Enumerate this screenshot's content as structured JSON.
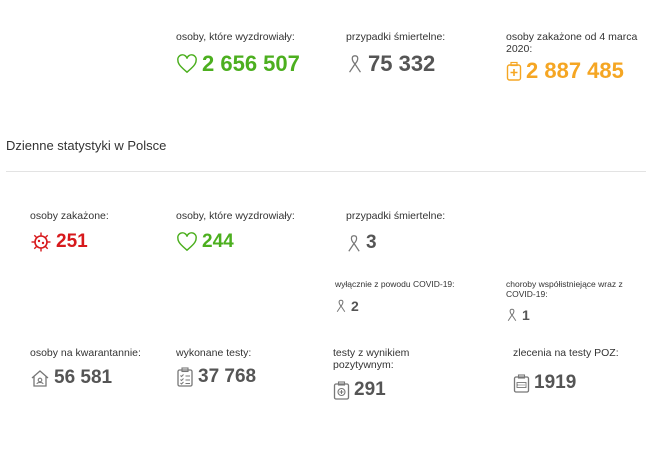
{
  "top": {
    "recovered": {
      "label": "osoby, które wyzdrowiały:",
      "value": "2 656 507"
    },
    "deaths": {
      "label": "przypadki śmiertelne:",
      "value": "75 332"
    },
    "infected_since": {
      "label": "osoby zakażone od 4 marca 2020:",
      "value": "2 887 485"
    }
  },
  "section": {
    "title": "Dzienne statystyki w Polsce"
  },
  "daily": {
    "infected": {
      "label": "osoby zakażone:",
      "value": "251"
    },
    "recovered": {
      "label": "osoby, które wyzdrowiały:",
      "value": "244"
    },
    "deaths": {
      "label": "przypadki śmiertelne:",
      "value": "3"
    },
    "covid_only": {
      "label": "wyłącznie z powodu COVID-19:",
      "value": "2"
    },
    "comorbid": {
      "label": "choroby współistniejące wraz z COVID-19:",
      "value": "1"
    },
    "quarantine": {
      "label": "osoby na kwarantannie:",
      "value": "56 581"
    },
    "tests": {
      "label": "wykonane testy:",
      "value": "37 768"
    },
    "positive_tests": {
      "label": "testy z wynikiem pozytywnym:",
      "value": "291"
    },
    "poz_orders": {
      "label": "zlecenia na testy POZ:",
      "value": "1919"
    }
  },
  "colors": {
    "green": "#4caf1f",
    "orange": "#f5a623",
    "red": "#d7191c",
    "gray": "#555555"
  },
  "icons": [
    "heart-icon",
    "ribbon-icon",
    "medical-kit-icon",
    "virus-icon",
    "house-icon",
    "clipboard-icon",
    "test-tube-icon",
    "document-icon"
  ]
}
